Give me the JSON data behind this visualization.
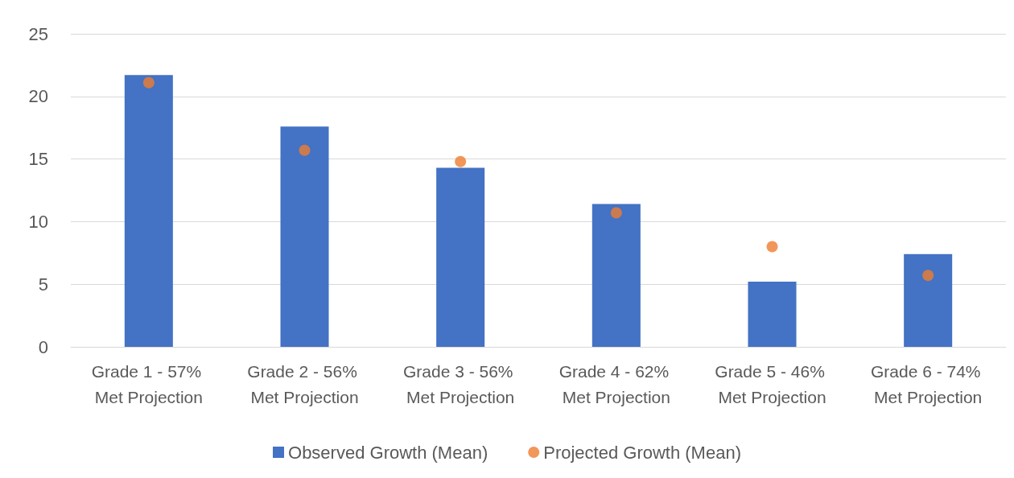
{
  "chart_data": {
    "type": "bar",
    "categories": [
      "Grade 1 - 57% Met Projection",
      "Grade 2 - 56% Met Projection",
      "Grade 3 - 56% Met Projection",
      "Grade 4 - 62% Met Projection",
      "Grade 5 - 46% Met Projection",
      "Grade 6 - 74% Met Projection"
    ],
    "series": [
      {
        "name": "Observed Growth (Mean)",
        "color": "#4472c4",
        "values": [
          21.7,
          17.6,
          14.3,
          11.4,
          5.2,
          7.4
        ]
      },
      {
        "name": "Projected Growth (Mean)",
        "type": "scatter",
        "color": "#ed7d31",
        "values": [
          21.1,
          15.7,
          14.8,
          10.7,
          8.0,
          5.7
        ]
      }
    ],
    "ylim": [
      0,
      25
    ],
    "yticks": [
      0,
      5,
      10,
      15,
      20,
      25
    ],
    "grid": "y",
    "legend": "bottom",
    "marker": "circle"
  }
}
